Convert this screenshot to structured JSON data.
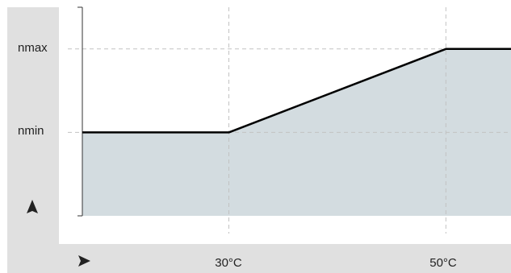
{
  "chart_data": {
    "type": "area",
    "title": "",
    "xlabel": "",
    "ylabel": "",
    "x_ticks": [
      {
        "label": "30°C",
        "value": 30
      },
      {
        "label": "50°C",
        "value": 50
      }
    ],
    "y_ticks": [
      {
        "label": "nmin",
        "value": 1
      },
      {
        "label": "nmax",
        "value": 2
      }
    ],
    "series": [
      {
        "points": [
          {
            "x": 16.5,
            "y": 1
          },
          {
            "x": 30,
            "y": 1
          },
          {
            "x": 50,
            "y": 2
          },
          {
            "x": 56,
            "y": 2
          }
        ]
      }
    ],
    "xlim": [
      16.5,
      56
    ],
    "ylim": [
      0,
      2.5
    ],
    "grid": "dashed reference lines at ticks",
    "x_axis_marker": "arrow-right-icon",
    "y_axis_marker": "arrow-up-icon"
  },
  "colors": {
    "frame_background": "#e0e0e0",
    "area_fill": "#d3dce0",
    "line": "#000000",
    "gridline": "#c2c2c2"
  }
}
